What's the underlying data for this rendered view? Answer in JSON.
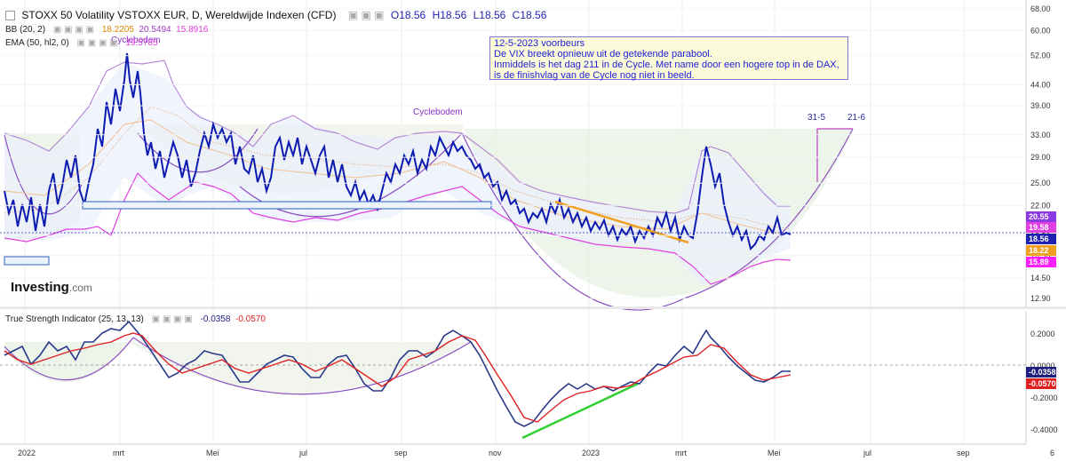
{
  "header": {
    "title": "STOXX 50 Volatility VSTOXX EUR, D, Wereldwijde Indexen (CFD)",
    "ohlc": {
      "o": "O18.56",
      "h": "H18.56",
      "l": "L18.56",
      "c": "C18.56"
    }
  },
  "indicators": {
    "bb": {
      "label": "BB (20, 2)",
      "v1": "18.2205",
      "v2": "20.5494",
      "v3": "15.8916"
    },
    "ema": {
      "label": "EMA (50, hl2, 0)",
      "v1": "19.5785"
    },
    "tsi": {
      "label": "True Strength Indicator (25, 13, 13)",
      "v1": "-0.0358",
      "v2": "-0.0570"
    }
  },
  "annotation": {
    "lines": [
      "12-5-2023 voorbeurs",
      "De VIX breekt opnieuw uit de getekende parabool.",
      "Inmiddels is het dag 211 in de Cycle. Met name door een hogere top in de DAX,",
      "is de finishvlag van de Cycle nog niet in beeld."
    ],
    "cyclebodem_1": "Cyclebodem",
    "cyclebodem_2": "Cyclebodem",
    "date_1": "31-5",
    "date_2": "21-6"
  },
  "logo": {
    "name": "Investing",
    "suffix": ".com"
  },
  "colors": {
    "price": "#0d1bb0",
    "bb_band": "#b48ad8",
    "bb_lower": "#e040e0",
    "ema": "#e0a070",
    "tsi": "#2a3a8a",
    "tsi_signal": "#e02020",
    "trend_orange": "#f0a020",
    "trend_green": "#30d030",
    "cycle_arc": "#8a4fc0",
    "shade": "#e6efe0"
  },
  "chart_data": [
    {
      "type": "line",
      "panel": "price",
      "title": "STOXX 50 Volatility VSTOXX EUR, D, Wereldwijde Indexen (CFD)",
      "yscale": "log",
      "yticks": [
        "68.00",
        "60.00",
        "52.00",
        "44.00",
        "39.00",
        "33.00",
        "29.00",
        "25.00",
        "22.00",
        "18.50",
        "16.50",
        "14.50",
        "12.90"
      ],
      "price_labels": [
        "20.55",
        "19.58",
        "18.56",
        "18.22",
        "15.89"
      ],
      "xticks": [
        "2022",
        "mrt",
        "Mei",
        "jul",
        "sep",
        "nov",
        "2023",
        "mrt",
        "Mei",
        "jul",
        "sep",
        "6"
      ],
      "series": [
        {
          "name": "STOXX 50 Volatility VSTOXX EUR",
          "points": [
            [
              "2022-01-03",
              20.5
            ],
            [
              "2022-01-10",
              19.0
            ],
            [
              "2022-01-17",
              21.5
            ],
            [
              "2022-01-24",
              24.5
            ],
            [
              "2022-01-31",
              22.0
            ],
            [
              "2022-02-07",
              24.0
            ],
            [
              "2022-02-14",
              28.0
            ],
            [
              "2022-02-21",
              36.0
            ],
            [
              "2022-02-28",
              48.0
            ],
            [
              "2022-03-07",
              56.0
            ],
            [
              "2022-03-14",
              42.0
            ],
            [
              "2022-03-21",
              35.0
            ],
            [
              "2022-03-28",
              31.0
            ],
            [
              "2022-04-04",
              29.0
            ],
            [
              "2022-04-11",
              28.5
            ],
            [
              "2022-04-18",
              30.0
            ],
            [
              "2022-04-25",
              33.0
            ],
            [
              "2022-05-02",
              31.0
            ],
            [
              "2022-05-09",
              35.0
            ],
            [
              "2022-05-16",
              34.0
            ],
            [
              "2022-05-23",
              29.0
            ],
            [
              "2022-05-30",
              27.0
            ],
            [
              "2022-06-06",
              26.0
            ],
            [
              "2022-06-13",
              30.5
            ],
            [
              "2022-06-20",
              30.0
            ],
            [
              "2022-06-27",
              31.5
            ],
            [
              "2022-07-04",
              32.5
            ],
            [
              "2022-07-11",
              31.0
            ],
            [
              "2022-07-18",
              28.0
            ],
            [
              "2022-07-25",
              27.0
            ],
            [
              "2022-08-01",
              25.5
            ],
            [
              "2022-08-08",
              23.5
            ],
            [
              "2022-08-15",
              22.5
            ],
            [
              "2022-08-22",
              24.5
            ],
            [
              "2022-08-29",
              27.0
            ],
            [
              "2022-09-05",
              28.0
            ],
            [
              "2022-09-12",
              29.5
            ],
            [
              "2022-09-19",
              31.0
            ],
            [
              "2022-09-26",
              34.0
            ],
            [
              "2022-10-03",
              31.0
            ],
            [
              "2022-10-10",
              30.5
            ],
            [
              "2022-10-17",
              28.0
            ],
            [
              "2022-10-24",
              25.5
            ],
            [
              "2022-10-31",
              24.0
            ],
            [
              "2022-11-07",
              23.0
            ],
            [
              "2022-11-14",
              21.5
            ],
            [
              "2022-11-21",
              21.0
            ],
            [
              "2022-11-28",
              20.5
            ],
            [
              "2022-12-05",
              21.0
            ],
            [
              "2022-12-12",
              22.0
            ],
            [
              "2022-12-19",
              21.5
            ],
            [
              "2022-12-26",
              20.5
            ],
            [
              "2023-01-02",
              20.0
            ],
            [
              "2023-01-09",
              19.5
            ],
            [
              "2023-01-16",
              19.0
            ],
            [
              "2023-01-23",
              19.5
            ],
            [
              "2023-01-30",
              18.8
            ],
            [
              "2023-02-06",
              19.5
            ],
            [
              "2023-02-13",
              19.0
            ],
            [
              "2023-02-20",
              19.5
            ],
            [
              "2023-02-27",
              20.5
            ],
            [
              "2023-03-06",
              19.0
            ],
            [
              "2023-03-13",
              29.0
            ],
            [
              "2023-03-20",
              27.0
            ],
            [
              "2023-03-27",
              23.5
            ],
            [
              "2023-04-03",
              21.0
            ],
            [
              "2023-04-10",
              19.5
            ],
            [
              "2023-04-17",
              18.2
            ],
            [
              "2023-04-24",
              19.0
            ],
            [
              "2023-05-01",
              20.5
            ],
            [
              "2023-05-08",
              18.9
            ],
            [
              "2023-05-12",
              18.56
            ]
          ]
        }
      ]
    },
    {
      "type": "line",
      "panel": "tsi",
      "title": "True Strength Indicator (25, 13, 13)",
      "yticks": [
        "0.2000",
        "0.0000",
        "-0.2000",
        "-0.4000"
      ],
      "series": [
        {
          "name": "TSI",
          "points": [
            [
              "2022-01-03",
              0.08
            ],
            [
              "2022-01-17",
              0.02
            ],
            [
              "2022-01-31",
              0.12
            ],
            [
              "2022-02-14",
              0.06
            ],
            [
              "2022-02-28",
              0.18
            ],
            [
              "2022-03-07",
              0.24
            ],
            [
              "2022-03-21",
              0.12
            ],
            [
              "2022-04-04",
              -0.08
            ],
            [
              "2022-04-18",
              -0.04
            ],
            [
              "2022-05-02",
              0.04
            ],
            [
              "2022-05-16",
              0.1
            ],
            [
              "2022-05-30",
              -0.06
            ],
            [
              "2022-06-13",
              0.0
            ],
            [
              "2022-06-27",
              0.08
            ],
            [
              "2022-07-11",
              0.1
            ],
            [
              "2022-07-25",
              -0.02
            ],
            [
              "2022-08-08",
              -0.13
            ],
            [
              "2022-08-22",
              -0.1
            ],
            [
              "2022-09-05",
              -0.02
            ],
            [
              "2022-09-19",
              0.05
            ],
            [
              "2022-10-03",
              0.18
            ],
            [
              "2022-10-17",
              0.2
            ],
            [
              "2022-10-31",
              0.04
            ],
            [
              "2022-11-14",
              -0.32
            ],
            [
              "2022-11-28",
              -0.42
            ],
            [
              "2022-12-12",
              -0.22
            ],
            [
              "2022-12-26",
              -0.14
            ],
            [
              "2023-01-09",
              -0.18
            ],
            [
              "2023-01-23",
              -0.12
            ],
            [
              "2023-02-06",
              -0.14
            ],
            [
              "2023-02-20",
              -0.04
            ],
            [
              "2023-03-06",
              0.02
            ],
            [
              "2023-03-20",
              0.18
            ],
            [
              "2023-04-03",
              0.06
            ],
            [
              "2023-04-17",
              -0.12
            ],
            [
              "2023-05-01",
              -0.06
            ],
            [
              "2023-05-12",
              -0.0358
            ]
          ]
        },
        {
          "name": "Signal",
          "points": [
            [
              "2022-01-03",
              0.02
            ],
            [
              "2022-01-31",
              0.06
            ],
            [
              "2022-02-28",
              0.14
            ],
            [
              "2022-03-21",
              0.16
            ],
            [
              "2022-04-18",
              0.0
            ],
            [
              "2022-05-16",
              0.04
            ],
            [
              "2022-06-13",
              0.0
            ],
            [
              "2022-07-11",
              0.04
            ],
            [
              "2022-08-08",
              -0.06
            ],
            [
              "2022-09-05",
              -0.06
            ],
            [
              "2022-10-03",
              0.1
            ],
            [
              "2022-10-24",
              0.14
            ],
            [
              "2022-11-14",
              -0.12
            ],
            [
              "2022-11-28",
              -0.32
            ],
            [
              "2022-12-26",
              -0.18
            ],
            [
              "2023-01-23",
              -0.16
            ],
            [
              "2023-02-20",
              -0.1
            ],
            [
              "2023-03-20",
              0.06
            ],
            [
              "2023-04-03",
              0.08
            ],
            [
              "2023-04-17",
              -0.08
            ],
            [
              "2023-05-12",
              -0.057
            ]
          ]
        }
      ]
    }
  ]
}
